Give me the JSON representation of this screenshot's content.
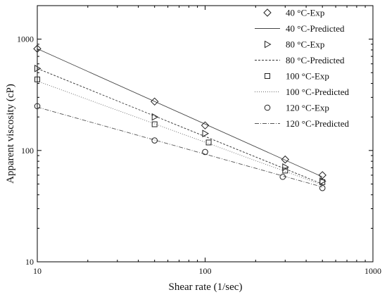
{
  "chart_data": {
    "type": "scatter",
    "title": "",
    "xlabel": "Shear rate (1/sec)",
    "ylabel": "Apparent viscosity (cP)",
    "xscale": "log",
    "yscale": "log",
    "xlim": [
      10,
      1000
    ],
    "ylim": [
      10,
      2000
    ],
    "xticks": [
      10,
      100,
      1000
    ],
    "xtick_labels": [
      "10",
      "100",
      "1000"
    ],
    "yticks": [
      10,
      100,
      1000
    ],
    "ytick_labels": [
      "10",
      "100",
      "1000"
    ],
    "grid": false,
    "legend_position": "top-right",
    "series": [
      {
        "name": "40 °C-Exp",
        "kind": "markers",
        "marker": "diamond",
        "x": [
          10,
          50,
          100,
          300,
          500
        ],
        "y": [
          820,
          275,
          168,
          83,
          60
        ]
      },
      {
        "name": "40 °C-Predicted",
        "kind": "line",
        "dash": "solid",
        "x": [
          10,
          500
        ],
        "y": [
          820,
          58
        ]
      },
      {
        "name": "80 °C-Exp",
        "kind": "markers",
        "marker": "triangle-right",
        "x": [
          10,
          50,
          100,
          300,
          500
        ],
        "y": [
          545,
          200,
          142,
          71,
          53
        ]
      },
      {
        "name": "80 °C-Predicted",
        "kind": "line",
        "dash": "short-dash",
        "x": [
          10,
          500
        ],
        "y": [
          545,
          50
        ]
      },
      {
        "name": "100 °C-Exp",
        "kind": "markers",
        "marker": "square",
        "x": [
          10,
          50,
          105,
          300,
          500
        ],
        "y": [
          435,
          172,
          118,
          66,
          52
        ]
      },
      {
        "name": "100 °C-Predicted",
        "kind": "line",
        "dash": "dot",
        "x": [
          10,
          500
        ],
        "y": [
          420,
          49
        ]
      },
      {
        "name": "120 °C-Exp",
        "kind": "markers",
        "marker": "circle",
        "x": [
          10,
          50,
          100,
          290,
          500
        ],
        "y": [
          250,
          123,
          97,
          58,
          46
        ]
      },
      {
        "name": "120 °C-Predicted",
        "kind": "line",
        "dash": "dash-dot",
        "x": [
          10,
          500
        ],
        "y": [
          245,
          47
        ]
      }
    ]
  }
}
